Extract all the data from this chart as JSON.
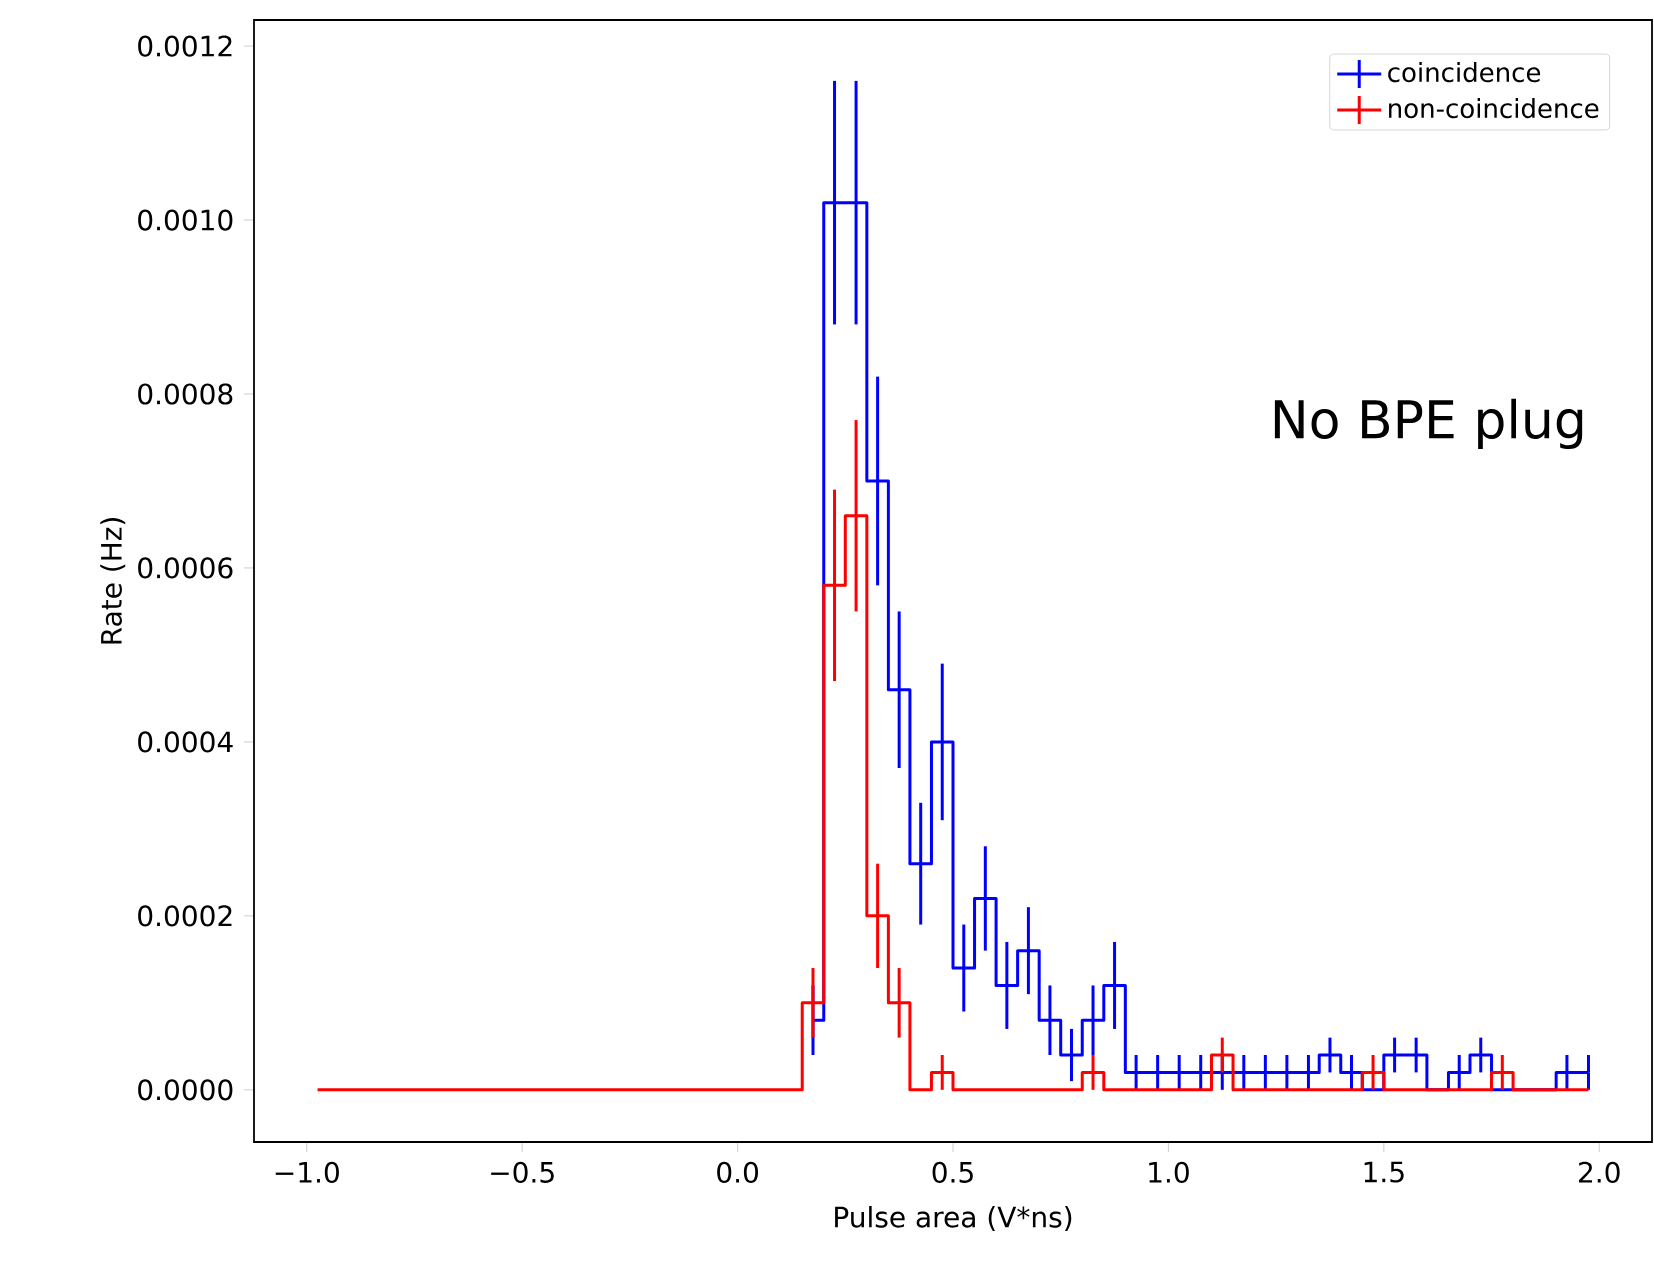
{
  "chart_data": {
    "type": "step",
    "xlabel": "Pulse area (V*ns)",
    "ylabel": "Rate (Hz)",
    "annotations": [
      "No BPE plug"
    ],
    "legend": "top right",
    "xlim": [
      -1.1225,
      2.1225
    ],
    "ylim": [
      -6e-05,
      0.00123
    ],
    "xticks": [
      {
        "value": -1,
        "label": "−1.0"
      },
      {
        "value": -0.5,
        "label": "−0.5"
      },
      {
        "value": 0,
        "label": "0.0"
      },
      {
        "value": 0.5,
        "label": "0.5"
      },
      {
        "value": 1,
        "label": "1.0"
      },
      {
        "value": 1.5,
        "label": "1.5"
      },
      {
        "value": 2,
        "label": "2.0"
      }
    ],
    "yticks": [
      {
        "value": 0,
        "label": "0.0000"
      },
      {
        "value": 0.0002,
        "label": "0.0002"
      },
      {
        "value": 0.0004,
        "label": "0.0004"
      },
      {
        "value": 0.0006,
        "label": "0.0006"
      },
      {
        "value": 0.0008,
        "label": "0.0008"
      },
      {
        "value": 0.001,
        "label": "0.0010"
      },
      {
        "value": 0.0012,
        "label": "0.0012"
      }
    ],
    "x": [
      -0.975,
      -0.925,
      -0.875,
      -0.825,
      -0.775,
      -0.725,
      -0.675,
      -0.625,
      -0.575,
      -0.525,
      -0.475,
      -0.425,
      -0.375,
      -0.325,
      -0.275,
      -0.225,
      -0.175,
      -0.125,
      -0.075,
      -0.025,
      0.025,
      0.075,
      0.125,
      0.175,
      0.225,
      0.275,
      0.325,
      0.375,
      0.425,
      0.475,
      0.525,
      0.575,
      0.625,
      0.675,
      0.725,
      0.775,
      0.825,
      0.875,
      0.925,
      0.975,
      1.025,
      1.075,
      1.125,
      1.175,
      1.225,
      1.275,
      1.325,
      1.375,
      1.425,
      1.475,
      1.525,
      1.575,
      1.625,
      1.675,
      1.725,
      1.775,
      1.825,
      1.875,
      1.925,
      1.975
    ],
    "series": [
      {
        "name": "coincidence",
        "color": "#0000ff",
        "values": [
          null,
          null,
          null,
          null,
          null,
          null,
          null,
          null,
          null,
          null,
          null,
          null,
          null,
          null,
          null,
          null,
          null,
          null,
          null,
          null,
          null,
          null,
          null,
          8e-05,
          0.00102,
          0.00102,
          0.0007,
          0.00046,
          0.00026,
          0.0004,
          0.00014,
          0.00022,
          0.00012,
          0.00016,
          8e-05,
          4e-05,
          8e-05,
          0.00012,
          2e-05,
          2e-05,
          2e-05,
          2e-05,
          2e-05,
          2e-05,
          2e-05,
          2e-05,
          2e-05,
          4e-05,
          2e-05,
          0,
          4e-05,
          4e-05,
          0,
          2e-05,
          4e-05,
          0,
          0,
          0,
          2e-05,
          2e-05
        ],
        "errors": [
          null,
          null,
          null,
          null,
          null,
          null,
          null,
          null,
          null,
          null,
          null,
          null,
          null,
          null,
          null,
          null,
          null,
          null,
          null,
          null,
          null,
          null,
          null,
          4e-05,
          0.00014,
          0.00014,
          0.00012,
          9e-05,
          7e-05,
          9e-05,
          5e-05,
          6e-05,
          5e-05,
          5e-05,
          4e-05,
          3e-05,
          4e-05,
          5e-05,
          2e-05,
          2e-05,
          2e-05,
          2e-05,
          2e-05,
          2e-05,
          2e-05,
          2e-05,
          2e-05,
          2e-05,
          2e-05,
          null,
          2e-05,
          2e-05,
          null,
          2e-05,
          2e-05,
          null,
          null,
          null,
          2e-05,
          2e-05
        ]
      },
      {
        "name": "non-coincidence",
        "color": "#ff0000",
        "values": [
          0,
          0,
          0,
          0,
          0,
          0,
          0,
          0,
          0,
          0,
          0,
          0,
          0,
          0,
          0,
          0,
          0,
          0,
          0,
          0,
          0,
          0,
          0,
          0.0001,
          0.00058,
          0.00066,
          0.0002,
          0.0001,
          0,
          2e-05,
          0,
          0,
          0,
          0,
          0,
          0,
          2e-05,
          0,
          0,
          0,
          0,
          0,
          4e-05,
          0,
          0,
          0,
          0,
          0,
          0,
          2e-05,
          0,
          0,
          0,
          0,
          0,
          2e-05,
          0,
          0,
          0,
          0
        ],
        "errors": [
          null,
          null,
          null,
          null,
          null,
          null,
          null,
          null,
          null,
          null,
          null,
          null,
          null,
          null,
          null,
          null,
          null,
          null,
          null,
          null,
          null,
          null,
          null,
          4e-05,
          0.00011,
          0.00011,
          6e-05,
          4e-05,
          null,
          2e-05,
          null,
          null,
          null,
          null,
          null,
          null,
          2e-05,
          null,
          null,
          null,
          null,
          null,
          2e-05,
          null,
          null,
          null,
          null,
          null,
          null,
          2e-05,
          null,
          null,
          null,
          null,
          null,
          2e-05,
          null,
          null,
          null,
          null
        ]
      }
    ]
  }
}
